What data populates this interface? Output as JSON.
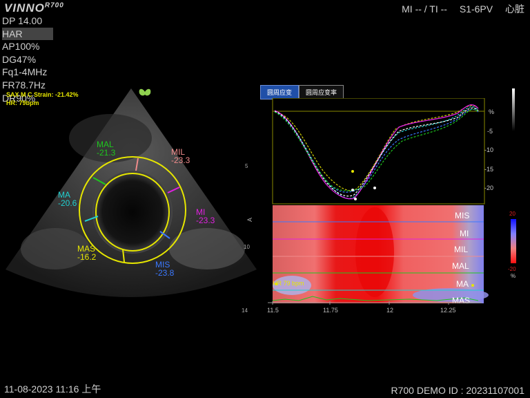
{
  "header": {
    "logo": "VINNO",
    "model_sup": "R700",
    "mi_ti": "MI -- / TI --",
    "probe": "S1-6PV",
    "exam": "心脏"
  },
  "params": [
    "DP 14.00",
    "HAR",
    "AP100%",
    "DG47%",
    "Fq1-4MHz",
    "FR78.7Hz",
    "DR90%"
  ],
  "strain": {
    "line1": "SAX M C Strain: -21.42%",
    "line2": "HR:  79bpm"
  },
  "segments": [
    {
      "name": "MAL",
      "value": "-21.3",
      "color": "#1ec81e"
    },
    {
      "name": "MIL",
      "value": "-23.3",
      "color": "#f08c8c"
    },
    {
      "name": "MA",
      "value": "-20.6",
      "color": "#20d0d0"
    },
    {
      "name": "MI",
      "value": "-23.3",
      "color": "#e020e0"
    },
    {
      "name": "MAS",
      "value": "-16.2",
      "color": "#e6e600"
    },
    {
      "name": "MIS",
      "value": "-23.8",
      "color": "#3a78ff"
    }
  ],
  "depth_ticks": [
    "5",
    "10",
    "14"
  ],
  "tabs": [
    "圆周应变",
    "圆周应变率"
  ],
  "strain_axis": [
    "%",
    "-5",
    "-10",
    "-15",
    "-20"
  ],
  "map_labels": [
    "MIS",
    "MI",
    "MIL",
    "MAL",
    "MA",
    "MAS"
  ],
  "colorbar": {
    "top": "20",
    "bottom": "-20",
    "unit": "%"
  },
  "time_ticks": [
    "11.5",
    "11.75",
    "12",
    "12.25"
  ],
  "hr_label": "HR 79 bpm",
  "footer": {
    "datetime": "11-08-2023 11:16 上午",
    "id": "R700 DEMO  ID : 20231107001"
  }
}
